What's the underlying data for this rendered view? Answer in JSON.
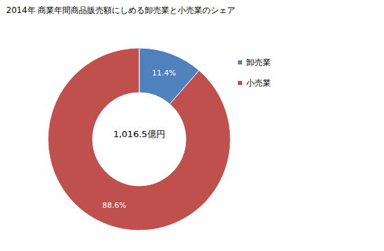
{
  "chart_data": {
    "type": "pie",
    "donut": true,
    "title": "2014年 商業年間商品販売額にしめる卸売業と小売業のシェア",
    "annotations": [
      "1,016.5億円"
    ],
    "categories": [
      "卸売業",
      "小売業"
    ],
    "values": [
      11.4,
      88.6
    ],
    "value_labels": [
      "11.4%",
      "88.6%"
    ],
    "colors": [
      "#4f81bd",
      "#c0504d"
    ],
    "data_labels": true,
    "legend": "right"
  }
}
